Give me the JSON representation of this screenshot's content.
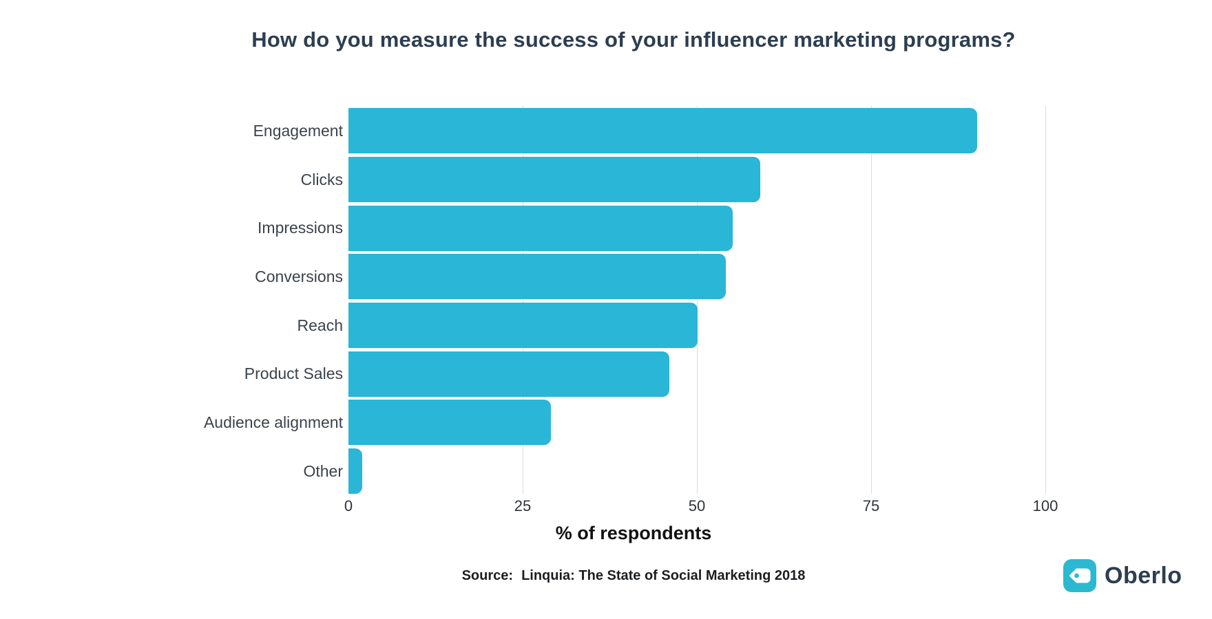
{
  "title": "How do you measure the success of your influencer marketing programs?",
  "chart_data": {
    "type": "bar",
    "orientation": "horizontal",
    "title": "How do you measure the success of your influencer marketing programs?",
    "categories": [
      "Engagement",
      "Clicks",
      "Impressions",
      "Conversions",
      "Reach",
      "Product Sales",
      "Audience alignment",
      "Other"
    ],
    "values": [
      90,
      59,
      55,
      54,
      50,
      46,
      29,
      2
    ],
    "xlabel": "% of respondents",
    "ylabel": "",
    "xlim": [
      0,
      100
    ],
    "x_ticks": [
      0,
      25,
      50,
      75,
      100
    ],
    "grid": "vertical gridlines at 25/50/75/100, no axis lines",
    "legend": "none",
    "bar_color": "#29b6d7"
  },
  "source": {
    "label": "Source:",
    "text": "Linquia: The State of Social Marketing 2018"
  },
  "logo": {
    "name": "Oberlo",
    "text": "Oberlo",
    "icon": "price-tag-icon",
    "icon_bg": "#2bb8d0",
    "text_color": "#2d3e50"
  },
  "colors": {
    "background": "#ffffff",
    "bar": "#29b6d7",
    "gridline": "#dcdcdc",
    "title": "#2d3e50",
    "category_labels": "#3a434c",
    "tick_labels": "#2f3338",
    "source_text": "#1b1e21"
  }
}
